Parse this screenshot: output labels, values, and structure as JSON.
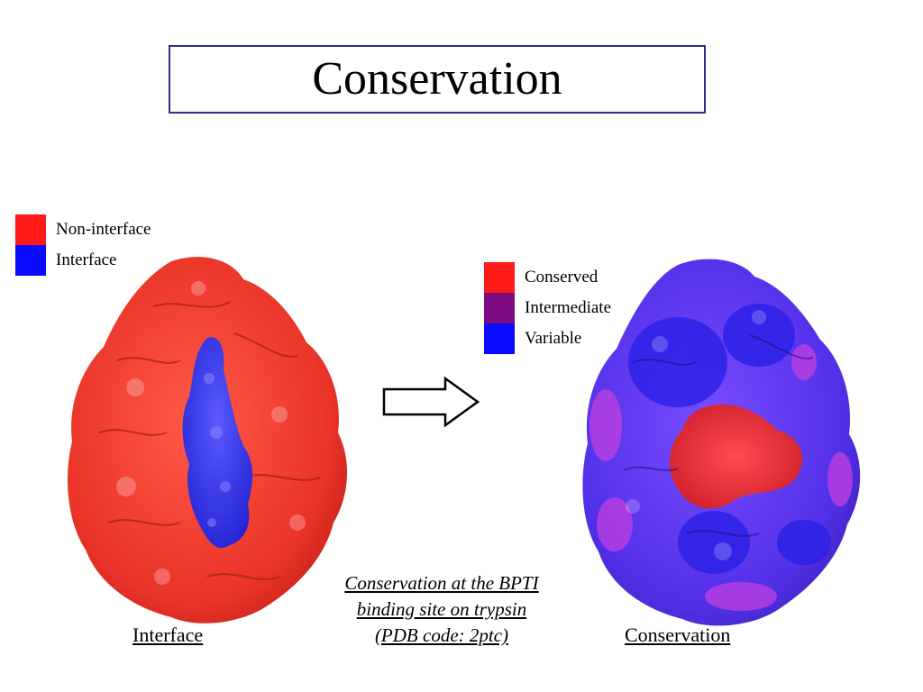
{
  "title": "Conservation",
  "legend_left": {
    "items": [
      {
        "label": "Non-interface",
        "color": "#ff1a1a"
      },
      {
        "label": "Interface",
        "color": "#0a0aff"
      }
    ]
  },
  "legend_right": {
    "items": [
      {
        "label": "Conserved",
        "color": "#ff1a1a"
      },
      {
        "label": "Intermediate",
        "color": "#7d0a80"
      },
      {
        "label": "Variable",
        "color": "#0a0aff"
      }
    ]
  },
  "colors": {
    "title_border": "#2b2f8c",
    "surface_red": "#ee3a30",
    "surface_blue": "#3a2ff0",
    "surface_purple": "#9a3ad8"
  },
  "captions": {
    "left": "Interface",
    "right": "Conservation",
    "center": [
      "Conservation at the BPTI",
      "binding site on trypsin",
      "(PDB code: 2ptc)"
    ]
  }
}
